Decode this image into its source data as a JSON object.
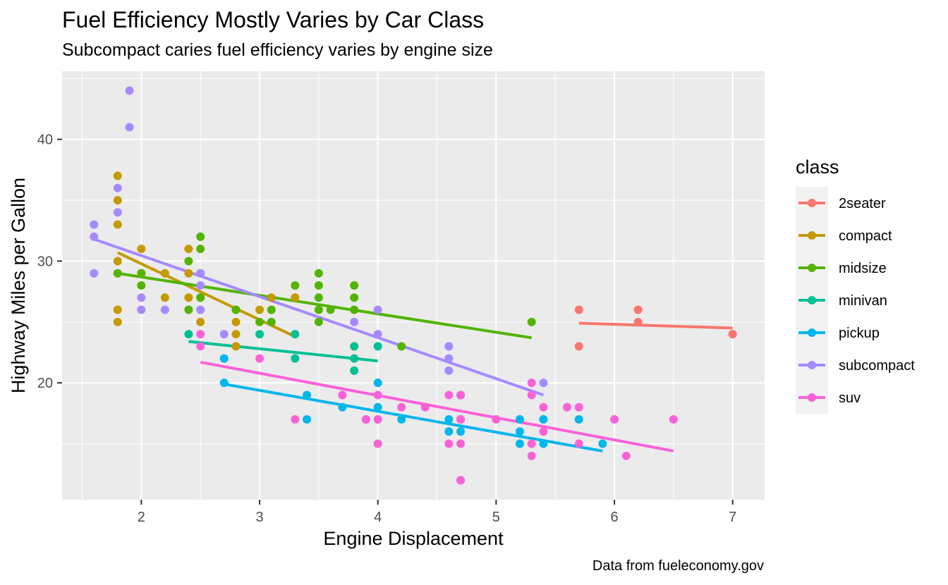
{
  "chart_data": {
    "type": "scatter",
    "title": "Fuel Efficiency Mostly Varies by Car Class",
    "subtitle": "Subcompact caries fuel efficiency varies by engine size",
    "xlabel": "Engine Displacement",
    "ylabel": "Highway Miles per Gallon",
    "caption": "Data from fueleconomy.gov",
    "xlim": [
      1.33,
      7.27
    ],
    "ylim": [
      10.4,
      45.6
    ],
    "x_ticks": [
      2,
      3,
      4,
      5,
      6,
      7
    ],
    "y_ticks": [
      20,
      30,
      40
    ],
    "grid": true,
    "legend": {
      "title": "class",
      "position": "right"
    },
    "series": [
      {
        "name": "2seater",
        "color": "#F8766D",
        "points": [
          [
            5.7,
            26
          ],
          [
            5.7,
            23
          ],
          [
            6.2,
            26
          ],
          [
            6.2,
            25
          ],
          [
            7.0,
            24
          ]
        ],
        "trend": [
          [
            5.7,
            24.9
          ],
          [
            7.0,
            24.5
          ]
        ]
      },
      {
        "name": "compact",
        "color": "#C49A00",
        "points": [
          [
            1.8,
            37
          ],
          [
            1.8,
            35
          ],
          [
            1.8,
            33
          ],
          [
            1.8,
            30
          ],
          [
            1.8,
            29
          ],
          [
            1.8,
            26
          ],
          [
            1.8,
            25
          ],
          [
            2.0,
            31
          ],
          [
            2.0,
            29
          ],
          [
            2.2,
            29
          ],
          [
            2.2,
            27
          ],
          [
            2.4,
            31
          ],
          [
            2.4,
            29
          ],
          [
            2.4,
            27
          ],
          [
            2.5,
            27
          ],
          [
            2.5,
            25
          ],
          [
            2.8,
            26
          ],
          [
            2.8,
            25
          ],
          [
            2.8,
            24
          ],
          [
            2.8,
            23
          ],
          [
            3.0,
            26
          ],
          [
            3.1,
            27
          ],
          [
            3.3,
            27
          ]
        ],
        "trend": [
          [
            1.8,
            30.7
          ],
          [
            3.3,
            23.8
          ]
        ]
      },
      {
        "name": "midsize",
        "color": "#53B400",
        "points": [
          [
            1.8,
            29
          ],
          [
            2.0,
            29
          ],
          [
            2.0,
            28
          ],
          [
            2.4,
            30
          ],
          [
            2.4,
            26
          ],
          [
            2.5,
            32
          ],
          [
            2.5,
            31
          ],
          [
            2.5,
            29
          ],
          [
            2.5,
            27
          ],
          [
            2.8,
            26
          ],
          [
            3.0,
            25
          ],
          [
            3.1,
            26
          ],
          [
            3.1,
            25
          ],
          [
            3.3,
            28
          ],
          [
            3.5,
            29
          ],
          [
            3.5,
            28
          ],
          [
            3.5,
            27
          ],
          [
            3.5,
            26
          ],
          [
            3.5,
            25
          ],
          [
            3.6,
            26
          ],
          [
            3.8,
            28
          ],
          [
            3.8,
            27
          ],
          [
            3.8,
            26
          ],
          [
            4.2,
            23
          ],
          [
            5.3,
            25
          ]
        ],
        "trend": [
          [
            1.8,
            29.0
          ],
          [
            5.3,
            23.7
          ]
        ]
      },
      {
        "name": "minivan",
        "color": "#00C094",
        "points": [
          [
            2.4,
            24
          ],
          [
            3.0,
            24
          ],
          [
            3.3,
            24
          ],
          [
            3.3,
            22
          ],
          [
            3.8,
            23
          ],
          [
            3.8,
            22
          ],
          [
            3.8,
            21
          ],
          [
            4.0,
            23
          ]
        ],
        "trend": [
          [
            2.4,
            23.4
          ],
          [
            4.0,
            21.8
          ]
        ]
      },
      {
        "name": "pickup",
        "color": "#00B6EB",
        "points": [
          [
            2.7,
            22
          ],
          [
            2.7,
            20
          ],
          [
            3.4,
            19
          ],
          [
            3.4,
            17
          ],
          [
            3.7,
            18
          ],
          [
            3.9,
            17
          ],
          [
            4.0,
            20
          ],
          [
            4.0,
            18
          ],
          [
            4.2,
            17
          ],
          [
            4.6,
            17
          ],
          [
            4.6,
            16
          ],
          [
            4.7,
            19
          ],
          [
            4.7,
            17
          ],
          [
            4.7,
            16
          ],
          [
            4.7,
            12
          ],
          [
            5.2,
            17
          ],
          [
            5.2,
            16
          ],
          [
            5.2,
            15
          ],
          [
            5.4,
            17
          ],
          [
            5.4,
            15
          ],
          [
            5.7,
            17
          ],
          [
            5.9,
            15
          ]
        ],
        "trend": [
          [
            2.7,
            19.9
          ],
          [
            5.9,
            14.4
          ]
        ]
      },
      {
        "name": "subcompact",
        "color": "#A58AFF",
        "points": [
          [
            1.6,
            33
          ],
          [
            1.6,
            32
          ],
          [
            1.6,
            29
          ],
          [
            1.8,
            36
          ],
          [
            1.8,
            34
          ],
          [
            1.9,
            44
          ],
          [
            1.9,
            41
          ],
          [
            2.0,
            27
          ],
          [
            2.0,
            26
          ],
          [
            2.2,
            26
          ],
          [
            2.5,
            29
          ],
          [
            2.5,
            28
          ],
          [
            2.5,
            26
          ],
          [
            2.7,
            24
          ],
          [
            3.8,
            25
          ],
          [
            4.0,
            26
          ],
          [
            4.0,
            24
          ],
          [
            4.6,
            23
          ],
          [
            4.6,
            22
          ],
          [
            4.6,
            21
          ],
          [
            5.4,
            20
          ]
        ],
        "trend": [
          [
            1.6,
            31.8
          ],
          [
            5.4,
            19.0
          ]
        ]
      },
      {
        "name": "suv",
        "color": "#FB61D7",
        "points": [
          [
            2.5,
            24
          ],
          [
            2.5,
            23
          ],
          [
            3.0,
            22
          ],
          [
            3.3,
            17
          ],
          [
            3.7,
            19
          ],
          [
            3.9,
            17
          ],
          [
            4.0,
            19
          ],
          [
            4.0,
            17
          ],
          [
            4.0,
            15
          ],
          [
            4.2,
            18
          ],
          [
            4.4,
            18
          ],
          [
            4.6,
            19
          ],
          [
            4.6,
            15
          ],
          [
            4.7,
            19
          ],
          [
            4.7,
            17
          ],
          [
            4.7,
            15
          ],
          [
            4.7,
            12
          ],
          [
            5.0,
            17
          ],
          [
            5.3,
            20
          ],
          [
            5.3,
            19
          ],
          [
            5.3,
            15
          ],
          [
            5.3,
            14
          ],
          [
            5.4,
            18
          ],
          [
            5.4,
            16
          ],
          [
            5.6,
            18
          ],
          [
            5.7,
            18
          ],
          [
            5.7,
            15
          ],
          [
            6.0,
            17
          ],
          [
            6.1,
            14
          ],
          [
            6.5,
            17
          ]
        ],
        "trend": [
          [
            2.5,
            21.7
          ],
          [
            6.5,
            14.4
          ]
        ]
      }
    ]
  }
}
